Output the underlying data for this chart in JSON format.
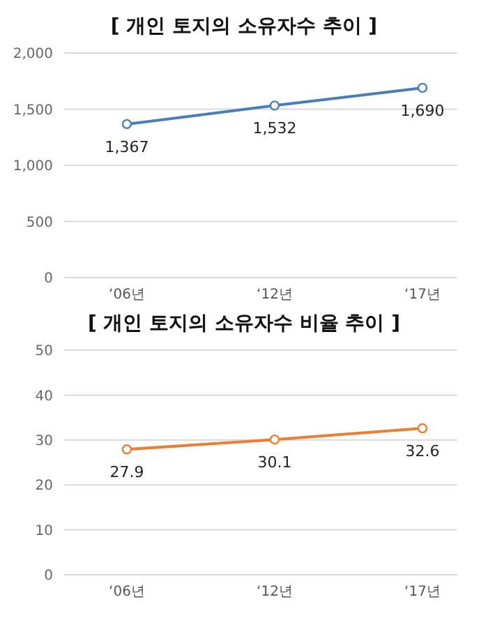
{
  "chart_data": [
    {
      "type": "line",
      "title": "[ 개인 토지의 소유자수 추이 ]",
      "categories": [
        "‘06년",
        "‘12년",
        "‘17년"
      ],
      "series": [
        {
          "color": "#4a7ebb",
          "values": [
            1367,
            1532,
            1690
          ],
          "value_labels": [
            "1,367",
            "1,532",
            "1,690"
          ]
        }
      ],
      "ylim": [
        0,
        2000
      ],
      "yticks": [
        0,
        500,
        {
          "value": 1000,
          "label": "1,000"
        },
        {
          "value": 1500,
          "label": "1,500"
        },
        {
          "value": 2000,
          "label": "2,000"
        }
      ],
      "grid": "y",
      "marker": "circle",
      "legend": false
    },
    {
      "type": "line",
      "title": "[ 개인 토지의 소유자수 비율 추이 ]",
      "categories": [
        "‘06년",
        "‘12년",
        "‘17년"
      ],
      "series": [
        {
          "color": "#ed7d31",
          "values": [
            27.9,
            30.1,
            32.6
          ],
          "value_labels": [
            "27.9",
            "30.1",
            "32.6"
          ]
        }
      ],
      "ylim": [
        0,
        50
      ],
      "yticks": [
        0,
        10,
        20,
        30,
        40,
        50
      ],
      "grid": "y",
      "marker": "circle",
      "legend": false
    }
  ]
}
